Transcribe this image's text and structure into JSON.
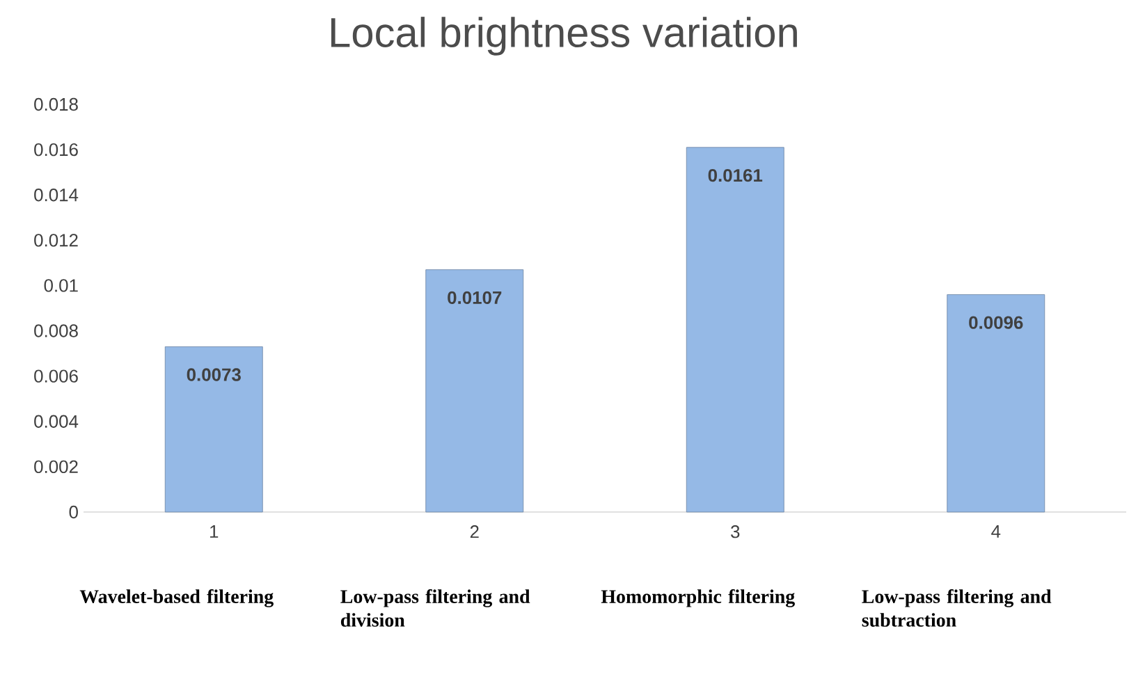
{
  "chart_data": {
    "type": "bar",
    "title": "Local brightness variation",
    "categories": [
      "1",
      "2",
      "3",
      "4"
    ],
    "values": [
      0.0073,
      0.0107,
      0.0161,
      0.0096
    ],
    "color": "#95b9e6",
    "ylim": [
      0,
      0.018
    ],
    "yticks": [
      0,
      0.002,
      0.004,
      0.006,
      0.008,
      0.01,
      0.012,
      0.014,
      0.016,
      0.018
    ],
    "data_labels": true,
    "annotations": [
      "Wavelet-based filtering",
      "Low-pass filtering and division",
      "Homomorphic filtering",
      "Low-pass filtering and subtraction"
    ]
  }
}
